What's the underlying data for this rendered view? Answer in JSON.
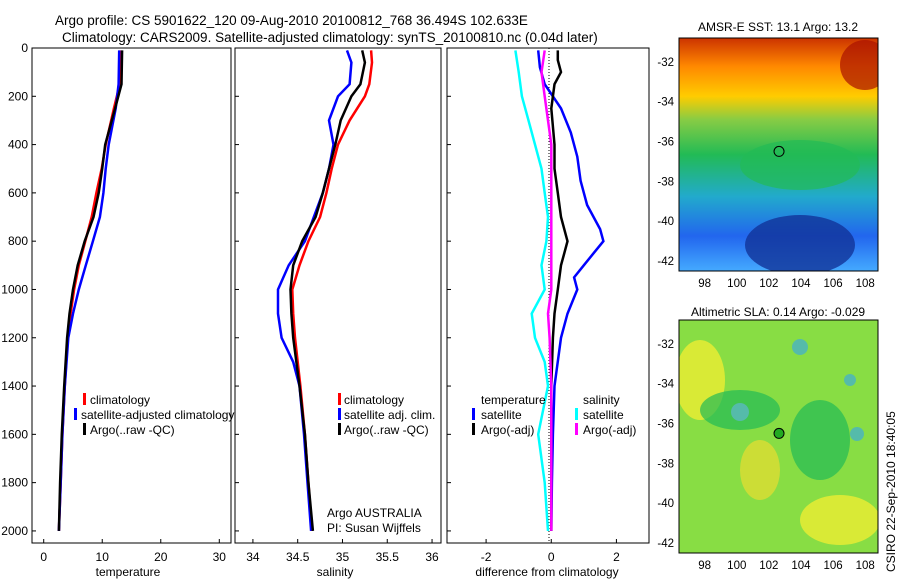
{
  "figure": {
    "title_line1": "Argo profile: CS 5901622_120 09-Aug-2010 20100812_768 36.494S 102.633E",
    "title_line2": "Climatology: CARS2009. Satellite-adjusted climatology: synTS_20100810.nc (0.04d later)",
    "credit": "CSIRO 22-Sep-2010 18:40:05",
    "note_line1": "Argo AUSTRALIA",
    "note_line2": "PI: Susan Wijffels"
  },
  "colors": {
    "climatology": "#ff0000",
    "satellite": "#0000ff",
    "argo": "#000000",
    "cyan": "#00ffff",
    "magenta": "#ff00ff"
  },
  "chart_data": [
    {
      "type": "line",
      "xlabel": "temperature",
      "xlim": [
        -2,
        32
      ],
      "ylim": [
        2050,
        0
      ],
      "ylabel": "",
      "xticks": [
        0,
        10,
        20,
        30
      ],
      "yticks": [
        0,
        200,
        400,
        600,
        800,
        1000,
        1200,
        1400,
        1600,
        1800,
        2000
      ],
      "legend": [
        "climatology",
        "satellite-adjusted climatology",
        "Argo(..raw -QC)"
      ],
      "series": [
        {
          "color": "#ff0000",
          "depth": [
            10,
            150,
            250,
            400,
            500,
            600,
            700,
            800,
            900,
            1000,
            1100,
            1200,
            1400,
            1600,
            1800,
            2000
          ],
          "values": [
            13.2,
            13.0,
            12.0,
            10.6,
            9.9,
            9.0,
            8.2,
            7.1,
            6.0,
            5.2,
            4.6,
            4.1,
            3.6,
            3.2,
            2.9,
            2.6
          ]
        },
        {
          "color": "#0000ff",
          "depth": [
            10,
            150,
            250,
            400,
            500,
            600,
            700,
            800,
            900,
            1000,
            1100,
            1200,
            1400,
            1600,
            1800,
            2000
          ],
          "values": [
            12.9,
            12.8,
            12.3,
            11.1,
            10.6,
            10.2,
            9.6,
            8.4,
            7.2,
            6.0,
            5.0,
            4.2,
            3.6,
            3.2,
            2.9,
            2.6
          ]
        },
        {
          "color": "#000000",
          "depth": [
            10,
            150,
            250,
            400,
            500,
            600,
            700,
            800,
            900,
            1000,
            1100,
            1200,
            1400,
            1600,
            1800,
            2000
          ],
          "values": [
            13.4,
            13.3,
            12.2,
            10.5,
            10.0,
            9.4,
            8.5,
            7.0,
            5.8,
            5.0,
            4.4,
            4.0,
            3.5,
            3.1,
            2.8,
            2.6
          ]
        }
      ]
    },
    {
      "type": "line",
      "xlabel": "salinity",
      "xlim": [
        33.8,
        36.1
      ],
      "ylim": [
        2050,
        0
      ],
      "ylabel": "",
      "xticks": [
        34,
        34.5,
        35,
        35.5,
        36
      ],
      "legend": [
        "climatology",
        "satellite adj. clim.",
        "Argo(..raw -QC)"
      ],
      "series": [
        {
          "color": "#ff0000",
          "depth": [
            10,
            60,
            150,
            200,
            300,
            400,
            500,
            600,
            700,
            800,
            900,
            1000,
            1100,
            1200,
            1400,
            1600,
            1800,
            2000
          ],
          "values": [
            35.32,
            35.33,
            35.3,
            35.25,
            35.08,
            34.95,
            34.88,
            34.82,
            34.75,
            34.62,
            34.52,
            34.44,
            34.45,
            34.47,
            34.53,
            34.58,
            34.62,
            34.66
          ]
        },
        {
          "color": "#0000ff",
          "depth": [
            10,
            60,
            150,
            200,
            300,
            400,
            500,
            600,
            700,
            800,
            900,
            1000,
            1100,
            1200,
            1300,
            1400,
            1600,
            1800,
            2000
          ],
          "values": [
            35.05,
            35.1,
            35.08,
            34.95,
            34.85,
            34.9,
            34.85,
            34.78,
            34.68,
            34.58,
            34.4,
            34.28,
            34.28,
            34.32,
            34.45,
            34.52,
            34.57,
            34.61,
            34.65
          ]
        },
        {
          "color": "#000000",
          "depth": [
            10,
            60,
            150,
            200,
            300,
            400,
            500,
            600,
            700,
            800,
            900,
            1000,
            1100,
            1200,
            1400,
            1600,
            1800,
            2000
          ],
          "values": [
            35.22,
            35.25,
            35.2,
            35.1,
            34.98,
            34.92,
            34.85,
            34.78,
            34.7,
            34.55,
            34.45,
            34.42,
            34.43,
            34.45,
            34.52,
            34.58,
            34.62,
            34.67
          ]
        }
      ]
    },
    {
      "type": "line",
      "xlabel": "difference from climatology",
      "xlim": [
        -3.2,
        3.0
      ],
      "ylim": [
        2050,
        0
      ],
      "ylabel": "",
      "xticks": [
        -2,
        0,
        2
      ],
      "legend_groups": [
        {
          "title": "temperature",
          "items": [
            "satellite",
            "Argo(-adj)"
          ]
        },
        {
          "title": "salinity",
          "items": [
            "satellite",
            "Argo(-adj)"
          ]
        }
      ],
      "series": [
        {
          "color": "#0000ff",
          "depth": [
            10,
            80,
            150,
            250,
            350,
            450,
            550,
            650,
            750,
            800,
            850,
            900,
            950,
            1000,
            1100,
            1200,
            1400,
            1600,
            1800,
            2000
          ],
          "values": [
            -0.4,
            -0.35,
            -0.2,
            0.3,
            0.6,
            0.8,
            0.9,
            1.1,
            1.5,
            1.6,
            1.3,
            1.0,
            0.7,
            0.8,
            0.5,
            0.3,
            0.1,
            0.05,
            0.02,
            0.0
          ]
        },
        {
          "color": "#000000",
          "depth": [
            10,
            50,
            100,
            150,
            250,
            400,
            500,
            600,
            700,
            800,
            850,
            900,
            1000,
            1100,
            1200,
            1400,
            1600,
            1800,
            2000
          ],
          "values": [
            0.2,
            0.2,
            0.3,
            0.1,
            0.0,
            0.1,
            0.1,
            0.2,
            0.3,
            0.5,
            0.4,
            0.3,
            0.2,
            0.1,
            0.05,
            0.0,
            0.0,
            0.0,
            0.0
          ]
        },
        {
          "color": "#00ffff",
          "depth": [
            10,
            100,
            200,
            300,
            400,
            500,
            600,
            700,
            800,
            900,
            1000,
            1100,
            1200,
            1300,
            1400,
            1600,
            1800,
            2000
          ],
          "values": [
            -1.1,
            -1.0,
            -0.9,
            -0.7,
            -0.5,
            -0.3,
            -0.2,
            -0.1,
            -0.15,
            -0.3,
            -0.2,
            -0.6,
            -0.5,
            -0.2,
            -0.1,
            -0.4,
            -0.2,
            -0.1
          ]
        },
        {
          "color": "#ff00ff",
          "depth": [
            10,
            100,
            200,
            300,
            400,
            500,
            600,
            700,
            800,
            900,
            1000,
            1100,
            1200,
            1400,
            1600,
            1800,
            2000
          ],
          "values": [
            -0.2,
            -0.3,
            -0.2,
            -0.1,
            0.0,
            0.0,
            0.0,
            0.0,
            0.0,
            0.0,
            0.0,
            -0.1,
            -0.05,
            0.0,
            0.0,
            0.0,
            0.0
          ]
        }
      ]
    },
    {
      "type": "heatmap",
      "title": "AMSR-E SST: 13.1 Argo: 13.2",
      "xlim": [
        96.4,
        108.8
      ],
      "ylim": [
        -42.5,
        -30.8
      ],
      "xticks": [
        98,
        100,
        102,
        104,
        106,
        108
      ],
      "yticks": [
        -32,
        -34,
        -36,
        -38,
        -40,
        -42
      ],
      "marker": {
        "lon": 102.633,
        "lat": -36.494
      }
    },
    {
      "type": "heatmap",
      "title": "Altimetric SLA: 0.14 Argo: -0.029",
      "xlim": [
        96.4,
        108.8
      ],
      "ylim": [
        -42.5,
        -30.8
      ],
      "xticks": [
        98,
        100,
        102,
        104,
        106,
        108
      ],
      "yticks": [
        -32,
        -34,
        -36,
        -38,
        -40,
        -42
      ],
      "marker": {
        "lon": 102.633,
        "lat": -36.494
      }
    }
  ]
}
